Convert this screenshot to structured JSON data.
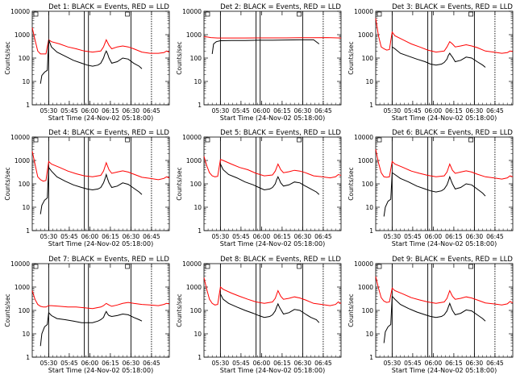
{
  "chart_data": {
    "type": "line",
    "title_pattern": "Det {n}: BLACK = Events, RED = LLD",
    "xlabel": "Start Time (24-Nov-02 05:18:00)",
    "ylabel": "Counts/sec",
    "x_tick_labels": [
      "05:30",
      "05:45",
      "06:00",
      "06:15",
      "06:30",
      "06:45"
    ],
    "x_tick_minutes": [
      12,
      27,
      42,
      57,
      72,
      87
    ],
    "xlim_minutes": [
      0,
      100
    ],
    "y_scale": "log",
    "ylim": [
      1,
      10000
    ],
    "y_tick_labels": [
      "1",
      "10",
      "100",
      "1000",
      "10000"
    ],
    "vertical_markers_minutes": [
      12,
      38,
      41,
      72,
      87
    ],
    "colors": {
      "events": "#000000",
      "lld": "#ff0000",
      "axis": "#000000"
    },
    "series_names": [
      "BLACK = Events",
      "RED = LLD"
    ],
    "panels": [
      {
        "title": "Det 1: BLACK = Events, RED = LLD",
        "lld": {
          "x": [
            0,
            2,
            4,
            6,
            8,
            10,
            12,
            14,
            20,
            26,
            32,
            38,
            44,
            50,
            52,
            54,
            56,
            58,
            62,
            66,
            70,
            74,
            80,
            86,
            92,
            96,
            98,
            100
          ],
          "y": [
            2000,
            600,
            200,
            150,
            150,
            150,
            600,
            500,
            400,
            300,
            250,
            200,
            180,
            200,
            300,
            600,
            350,
            250,
            300,
            330,
            300,
            250,
            180,
            160,
            160,
            170,
            200,
            180
          ]
        },
        "events": {
          "x": [
            6,
            7,
            9,
            11,
            12,
            14,
            18,
            24,
            30,
            36,
            40,
            44,
            48,
            50,
            52,
            53,
            54,
            55,
            56,
            58,
            62,
            66,
            70,
            74,
            78,
            80
          ],
          "y": [
            8,
            18,
            25,
            30,
            600,
            300,
            180,
            120,
            80,
            60,
            50,
            45,
            50,
            60,
            100,
            150,
            200,
            150,
            100,
            60,
            70,
            100,
            90,
            60,
            45,
            35
          ]
        }
      },
      {
        "title": "Det 2: BLACK = Events, RED = LLD",
        "lld": {
          "x": [
            0,
            2,
            5,
            10,
            20,
            30,
            40,
            50,
            60,
            70,
            80,
            90,
            100
          ],
          "y": [
            800,
            800,
            750,
            720,
            720,
            720,
            730,
            730,
            730,
            740,
            740,
            750,
            720
          ]
        },
        "events": {
          "x": [
            6,
            7,
            9,
            12,
            20,
            30,
            40,
            50,
            60,
            70,
            80,
            84
          ],
          "y": [
            150,
            400,
            500,
            550,
            560,
            560,
            580,
            580,
            590,
            600,
            600,
            400
          ]
        }
      },
      {
        "title": "Det 3: BLACK = Events, RED = LLD",
        "lld": {
          "x": [
            0,
            2,
            4,
            6,
            8,
            10,
            12,
            14,
            20,
            26,
            32,
            38,
            44,
            50,
            52,
            54,
            56,
            58,
            62,
            66,
            70,
            74,
            80,
            86,
            92,
            96,
            98,
            100
          ],
          "y": [
            5000,
            900,
            300,
            250,
            220,
            230,
            1300,
            900,
            600,
            400,
            300,
            220,
            180,
            200,
            300,
            500,
            400,
            300,
            330,
            370,
            330,
            280,
            200,
            180,
            160,
            170,
            200,
            190
          ]
        },
        "events": {
          "x": [
            12,
            14,
            18,
            24,
            30,
            36,
            40,
            44,
            48,
            50,
            52,
            53,
            54,
            55,
            56,
            58,
            62,
            66,
            70,
            74,
            78,
            80
          ],
          "y": [
            300,
            250,
            160,
            120,
            90,
            70,
            55,
            50,
            55,
            65,
            90,
            130,
            160,
            130,
            110,
            70,
            80,
            110,
            100,
            70,
            50,
            40
          ]
        }
      },
      {
        "title": "Det 4: BLACK = Events, RED = LLD",
        "lld": {
          "x": [
            0,
            2,
            4,
            6,
            8,
            10,
            12,
            14,
            20,
            26,
            32,
            38,
            44,
            50,
            52,
            54,
            56,
            58,
            62,
            66,
            70,
            74,
            80,
            86,
            92,
            96,
            98,
            100
          ],
          "y": [
            2500,
            700,
            200,
            150,
            130,
            140,
            900,
            700,
            500,
            350,
            270,
            220,
            200,
            230,
            350,
            800,
            400,
            280,
            320,
            360,
            320,
            260,
            190,
            170,
            150,
            170,
            200,
            180
          ]
        },
        "events": {
          "x": [
            6,
            7,
            9,
            11,
            12,
            14,
            18,
            24,
            30,
            36,
            40,
            44,
            48,
            50,
            52,
            53,
            54,
            55,
            56,
            58,
            62,
            66,
            70,
            74,
            78,
            80
          ],
          "y": [
            5,
            12,
            20,
            25,
            500,
            350,
            200,
            130,
            90,
            70,
            60,
            55,
            60,
            70,
            110,
            160,
            250,
            160,
            110,
            70,
            80,
            110,
            95,
            65,
            45,
            35
          ]
        }
      },
      {
        "title": "Det 5: BLACK = Events, RED = LLD",
        "lld": {
          "x": [
            0,
            2,
            4,
            6,
            8,
            10,
            12,
            14,
            20,
            26,
            32,
            38,
            44,
            50,
            52,
            54,
            56,
            58,
            62,
            66,
            70,
            74,
            80,
            86,
            92,
            96,
            98,
            100
          ],
          "y": [
            1500,
            600,
            300,
            220,
            200,
            210,
            1100,
            1000,
            700,
            500,
            400,
            280,
            220,
            240,
            350,
            700,
            400,
            300,
            330,
            380,
            350,
            300,
            220,
            200,
            180,
            200,
            250,
            230
          ]
        },
        "events": {
          "x": [
            12,
            14,
            18,
            24,
            30,
            36,
            40,
            44,
            48,
            50,
            52,
            53,
            54,
            55,
            56,
            58,
            62,
            66,
            70,
            74,
            78,
            82,
            84
          ],
          "y": [
            700,
            400,
            250,
            180,
            120,
            90,
            70,
            55,
            60,
            70,
            100,
            150,
            200,
            150,
            110,
            80,
            90,
            120,
            110,
            80,
            60,
            45,
            35
          ]
        }
      },
      {
        "title": "Det 6: BLACK = Events, RED = LLD",
        "lld": {
          "x": [
            0,
            2,
            4,
            6,
            8,
            10,
            12,
            14,
            20,
            26,
            32,
            38,
            44,
            50,
            52,
            54,
            56,
            58,
            62,
            66,
            70,
            74,
            80,
            86,
            92,
            96,
            98,
            100
          ],
          "y": [
            3000,
            800,
            300,
            200,
            190,
            200,
            900,
            700,
            500,
            350,
            280,
            230,
            200,
            220,
            320,
            700,
            380,
            280,
            320,
            360,
            320,
            260,
            200,
            180,
            160,
            180,
            220,
            200
          ]
        },
        "events": {
          "x": [
            6,
            7,
            9,
            11,
            12,
            14,
            18,
            24,
            30,
            36,
            40,
            44,
            48,
            50,
            52,
            53,
            54,
            55,
            56,
            58,
            62,
            66,
            70,
            74,
            78,
            80
          ],
          "y": [
            4,
            10,
            18,
            22,
            300,
            250,
            170,
            120,
            80,
            60,
            50,
            45,
            50,
            60,
            90,
            130,
            200,
            140,
            100,
            60,
            70,
            100,
            90,
            60,
            40,
            30
          ]
        }
      },
      {
        "title": "Det 7: BLACK = Events, RED = LLD",
        "lld": {
          "x": [
            0,
            2,
            4,
            6,
            8,
            10,
            12,
            14,
            20,
            26,
            32,
            38,
            44,
            50,
            52,
            54,
            56,
            58,
            62,
            66,
            70,
            74,
            80,
            86,
            92,
            96,
            98,
            100
          ],
          "y": [
            700,
            300,
            180,
            150,
            140,
            140,
            160,
            160,
            150,
            140,
            140,
            130,
            120,
            140,
            160,
            200,
            170,
            150,
            170,
            200,
            220,
            200,
            180,
            170,
            160,
            180,
            200,
            190
          ]
        },
        "events": {
          "x": [
            6,
            7,
            9,
            11,
            12,
            14,
            18,
            24,
            30,
            36,
            40,
            44,
            48,
            50,
            52,
            53,
            54,
            55,
            56,
            58,
            62,
            66,
            70,
            74,
            78,
            80
          ],
          "y": [
            3,
            10,
            20,
            25,
            80,
            60,
            45,
            40,
            35,
            30,
            30,
            30,
            35,
            40,
            50,
            70,
            90,
            70,
            60,
            55,
            60,
            70,
            65,
            50,
            40,
            35
          ]
        }
      },
      {
        "title": "Det 8: BLACK = Events, RED = LLD",
        "lld": {
          "x": [
            0,
            2,
            4,
            6,
            8,
            10,
            12,
            14,
            20,
            26,
            32,
            38,
            44,
            50,
            52,
            54,
            56,
            58,
            62,
            66,
            70,
            74,
            80,
            86,
            92,
            96,
            98,
            100
          ],
          "y": [
            2500,
            800,
            300,
            200,
            170,
            180,
            1000,
            800,
            550,
            400,
            300,
            230,
            200,
            230,
            330,
            700,
            400,
            300,
            330,
            380,
            340,
            280,
            200,
            180,
            160,
            180,
            230,
            200
          ]
        },
        "events": {
          "x": [
            12,
            14,
            18,
            24,
            30,
            36,
            40,
            44,
            48,
            50,
            52,
            53,
            54,
            55,
            56,
            58,
            62,
            66,
            70,
            74,
            78,
            82,
            84
          ],
          "y": [
            500,
            300,
            200,
            140,
            100,
            75,
            60,
            50,
            55,
            65,
            95,
            140,
            190,
            140,
            110,
            70,
            80,
            110,
            100,
            70,
            50,
            40,
            30
          ]
        }
      },
      {
        "title": "Det 9: BLACK = Events, RED = LLD",
        "lld": {
          "x": [
            0,
            2,
            4,
            6,
            8,
            10,
            12,
            14,
            20,
            26,
            32,
            38,
            44,
            50,
            52,
            54,
            56,
            58,
            62,
            66,
            70,
            74,
            80,
            86,
            92,
            96,
            98,
            100
          ],
          "y": [
            2800,
            900,
            350,
            250,
            220,
            230,
            900,
            700,
            500,
            350,
            280,
            230,
            200,
            230,
            330,
            700,
            400,
            300,
            330,
            380,
            340,
            280,
            210,
            190,
            170,
            190,
            240,
            210
          ]
        },
        "events": {
          "x": [
            6,
            7,
            9,
            11,
            12,
            14,
            18,
            24,
            30,
            36,
            40,
            44,
            48,
            50,
            52,
            53,
            54,
            55,
            56,
            58,
            62,
            66,
            70,
            74,
            78,
            80
          ],
          "y": [
            4,
            12,
            20,
            25,
            400,
            300,
            180,
            120,
            85,
            65,
            55,
            50,
            55,
            65,
            95,
            140,
            200,
            140,
            100,
            65,
            75,
            105,
            95,
            65,
            45,
            35
          ]
        }
      }
    ]
  }
}
